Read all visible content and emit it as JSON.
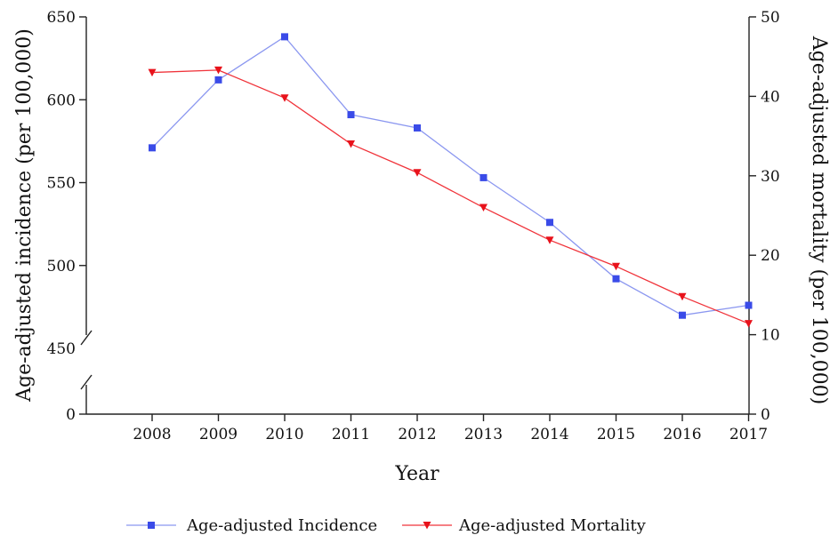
{
  "chart_data": {
    "type": "line",
    "title": "",
    "xlabel": "Year",
    "ylabel_left": "Age-adjusted incidence (per 100,000)",
    "ylabel_right": "Age-adjusted mortality (per 100,000)",
    "x": [
      2008,
      2009,
      2010,
      2011,
      2012,
      2013,
      2014,
      2015,
      2016,
      2017
    ],
    "x_tick_labels": [
      "2008",
      "2009",
      "2010",
      "2011",
      "2012",
      "2013",
      "2014",
      "2015",
      "2016",
      "2017"
    ],
    "y_left_ticks": [
      0,
      450,
      500,
      550,
      600,
      650
    ],
    "y_left_tick_labels": [
      "0",
      "450",
      "500",
      "550",
      "600",
      "650"
    ],
    "y_left_axis_break": [
      0,
      450
    ],
    "y_left_lim": [
      450,
      650
    ],
    "y_right_ticks": [
      0,
      10,
      20,
      30,
      40,
      50
    ],
    "y_right_tick_labels": [
      "0",
      "10",
      "20",
      "30",
      "40",
      "50"
    ],
    "y_right_lim": [
      0,
      50
    ],
    "grid": false,
    "legend_position": "bottom",
    "series": [
      {
        "name": "Age-adjusted Incidence",
        "axis": "left",
        "color": "#3a4be8",
        "line_color": "#8b97f0",
        "marker": "square",
        "values": [
          571,
          612,
          638,
          591,
          583,
          553,
          526,
          492,
          470,
          476
        ]
      },
      {
        "name": "Age-adjusted Mortality",
        "axis": "right",
        "color": "#e8121b",
        "line_color": "#f0333a",
        "marker": "triangle-down",
        "values": [
          43.0,
          43.3,
          39.8,
          34.0,
          30.4,
          26.0,
          21.9,
          18.6,
          14.8,
          11.4
        ]
      }
    ]
  }
}
